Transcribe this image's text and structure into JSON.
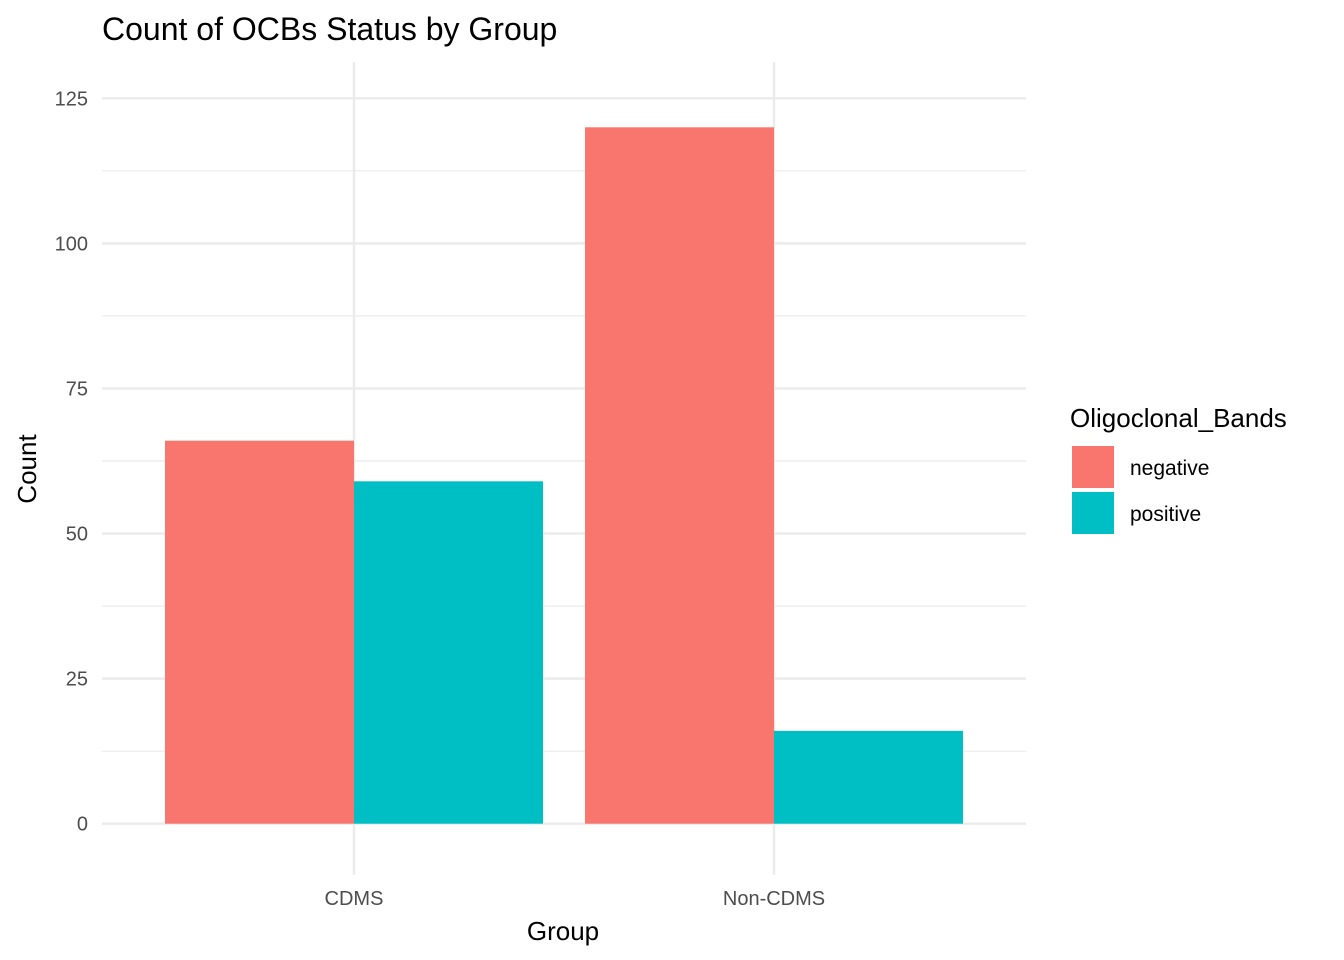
{
  "chart_data": {
    "type": "bar",
    "title": "Count of OCBs Status by Group",
    "xlabel": "Group",
    "ylabel": "Count",
    "categories": [
      "CDMS",
      "Non-CDMS"
    ],
    "series": [
      {
        "name": "negative",
        "values": [
          66,
          120
        ],
        "color": "#F8766D"
      },
      {
        "name": "positive",
        "values": [
          59,
          16
        ],
        "color": "#00BFC4"
      }
    ],
    "ylim": [
      0,
      125
    ],
    "yticks": [
      0,
      25,
      50,
      75,
      100,
      125
    ],
    "grid": true,
    "legend": {
      "title": "Oligoclonal_Bands",
      "placement": "right"
    }
  }
}
